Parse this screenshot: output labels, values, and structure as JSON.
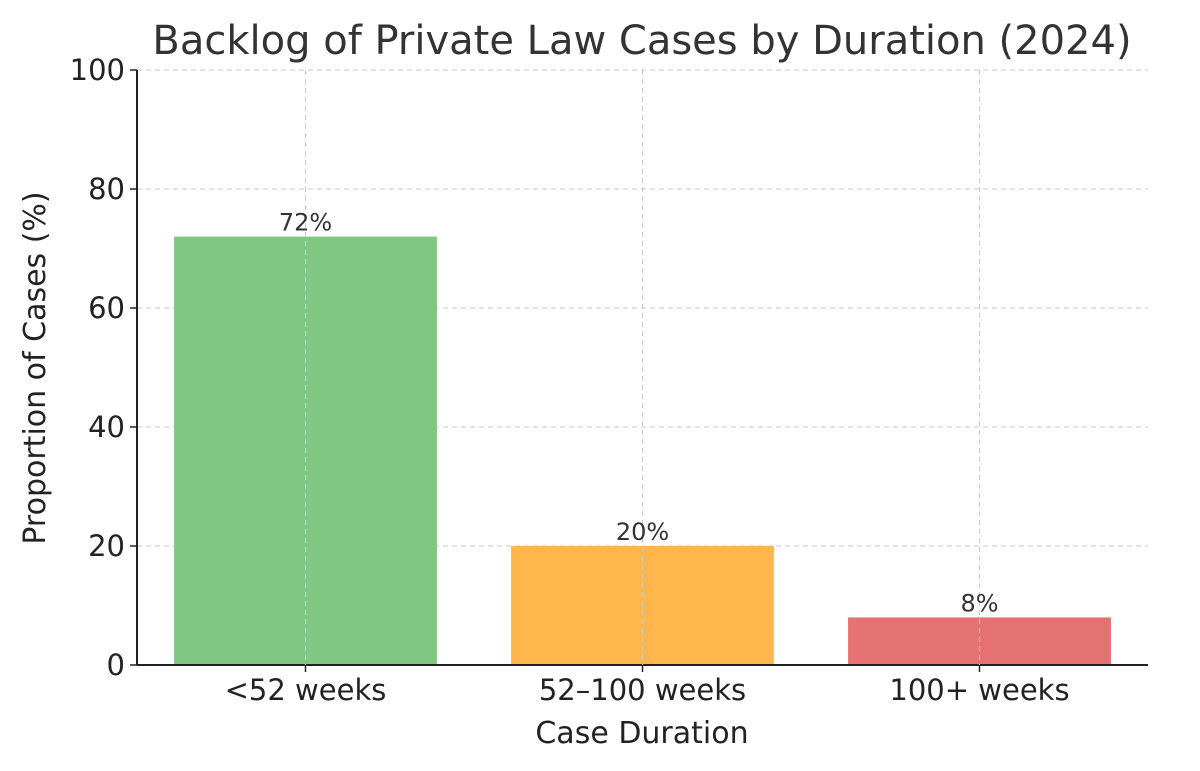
{
  "chart_data": {
    "type": "bar",
    "title": "Backlog of Private Law Cases by Duration (2024)",
    "xlabel": "Case Duration",
    "ylabel": "Proportion of Cases (%)",
    "categories": [
      "<52 weeks",
      "52–100 weeks",
      "100+ weeks"
    ],
    "values": [
      72,
      20,
      8
    ],
    "data_labels": [
      "72%",
      "20%",
      "8%"
    ],
    "colors": [
      "#81c784",
      "#ffb74d",
      "#e57373"
    ],
    "ylim": [
      0,
      100
    ],
    "yticks": [
      0,
      20,
      40,
      60,
      80,
      100
    ],
    "grid": true,
    "legend": "none"
  }
}
